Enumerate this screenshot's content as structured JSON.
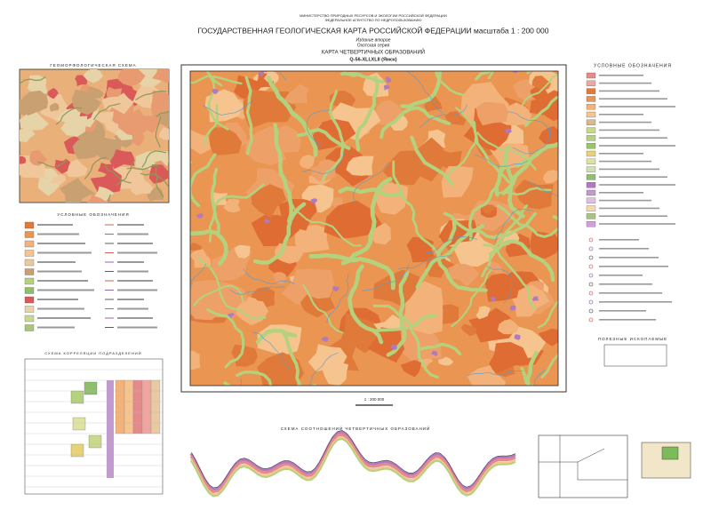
{
  "header": {
    "ministry": "МИНИСТЕРСТВО ПРИРОДНЫХ РЕСУРСОВ И ЭКОЛОГИИ РОССИЙСКОЙ ФЕДЕРАЦИИ",
    "agency": "ФЕДЕРАЛЬНОЕ АГЕНТСТВО ПО НЕДРОПОЛЬЗОВАНИЮ",
    "title": "ГОСУДАРСТВЕННАЯ ГЕОЛОГИЧЕСКАЯ КАРТА РОССИЙСКОЙ ФЕДЕРАЦИИ масштаба 1 : 200 000",
    "edition": "Издание второе",
    "series": "Охотская серия",
    "map_title": "КАРТА ЧЕТВЕРТИЧНЫХ ОБРАЗОВАНИЙ",
    "sheet": "Q-56-XLI,XLII (Ямск)"
  },
  "panels": {
    "geomorph": "ГЕОМОРФОЛОГИЧЕСКАЯ СХЕМА",
    "legend_left": "УСЛОВНЫЕ ОБОЗНАЧЕНИЯ",
    "legend_right": "УСЛОВНЫЕ ОБОЗНАЧЕНИЯ",
    "minerals": "ПОЛЕЗНЫЕ ИСКОПАЕМЫЕ",
    "correlation": "СХЕМА КОРРЕЛЯЦИИ ПОДРАЗДЕЛЕНИЙ",
    "relations": "СХЕМА СООТНОШЕНИЙ ЧЕТВЕРТИЧНЫХ ОБРАЗОВАНИЙ",
    "scale": "1 : 200 000"
  }
}
